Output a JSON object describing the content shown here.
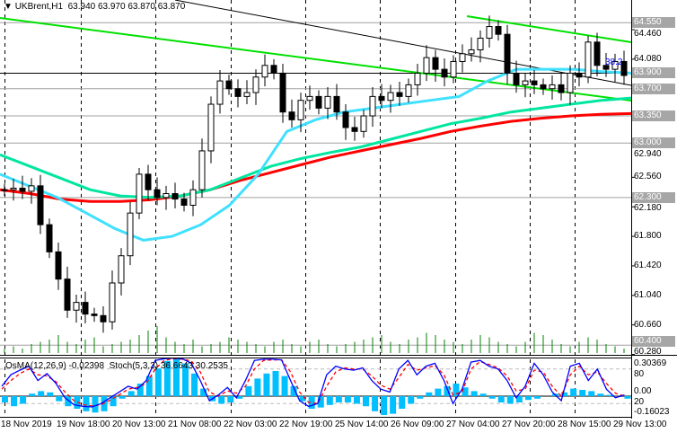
{
  "header": {
    "symbol": "UKBrent,H1",
    "ohlc": "63.940 63.970 63.870 63.870"
  },
  "indicator_header": {
    "osma": "OsMA(12,26,9) -0.02398",
    "stoch": "Stoch(5,3,3) 36.6643 30.2535"
  },
  "price_axis": [
    "64.460",
    "64.080",
    "62.940",
    "62.560",
    "62.180",
    "61.800",
    "61.420",
    "61.040",
    "60.660",
    "60.280"
  ],
  "level_labels": [
    "64.550",
    "63.900",
    "63.700",
    "63.350",
    "63.000",
    "62.300",
    "60.400"
  ],
  "fib_label": "38.2",
  "indicator_axis": [
    "0.30369",
    "80",
    "0.00",
    "20",
    "-0.16023"
  ],
  "time_axis": [
    "18 Nov 2019",
    "19 Nov 18:00",
    "20 Nov 13:00",
    "21 Nov 08:00",
    "22 Nov 03:00",
    "22 Nov 19:00",
    "25 Nov 14:00",
    "26 Nov 09:00",
    "27 Nov 04:00",
    "27 Nov 20:00",
    "28 Nov 15:00",
    "29 Nov 13:00"
  ],
  "colors": {
    "bull": "#ffffff",
    "bear": "#000000",
    "ma_fast": "#40e0ff",
    "ma_mid": "#00e6a0",
    "ma_slow": "#ff0000",
    "channel": "#00e000",
    "osma": "#00bfff",
    "stoch": "#0000ff",
    "signal": "#ff0000",
    "volume": "#008000"
  },
  "chart_data": {
    "type": "candlestick",
    "price_range": [
      60.28,
      64.75
    ],
    "closes": [
      62.4,
      62.42,
      62.38,
      62.45,
      61.95,
      61.6,
      61.25,
      60.85,
      60.95,
      60.8,
      60.78,
      60.7,
      61.2,
      61.55,
      62.1,
      62.6,
      62.4,
      62.3,
      62.35,
      62.28,
      62.2,
      62.4,
      62.9,
      63.5,
      63.8,
      63.7,
      63.6,
      63.65,
      63.85,
      64.0,
      63.9,
      63.4,
      63.3,
      63.55,
      63.6,
      63.45,
      63.6,
      63.4,
      63.2,
      63.15,
      63.35,
      63.6,
      63.55,
      63.65,
      63.6,
      63.75,
      63.9,
      64.1,
      63.95,
      63.85,
      64.05,
      64.15,
      64.2,
      64.35,
      64.5,
      64.4,
      63.9,
      63.75,
      63.8,
      63.75,
      63.7,
      63.75,
      63.65,
      63.9,
      63.85,
      64.3,
      64.0,
      63.95,
      64.05,
      63.87
    ],
    "ma_fast": [
      62.6,
      62.45,
      62.3,
      62.1,
      61.9,
      61.75,
      61.8,
      61.95,
      62.2,
      62.6,
      63.15,
      63.3,
      63.4,
      63.45,
      63.5,
      63.55,
      63.6,
      63.8,
      63.95,
      63.95,
      63.95,
      63.92,
      63.9
    ],
    "ma_mid": [
      62.85,
      62.7,
      62.55,
      62.4,
      62.32,
      62.3,
      62.32,
      62.4,
      62.55,
      62.7,
      62.8,
      62.88,
      62.95,
      63.05,
      63.15,
      63.25,
      63.32,
      63.4,
      63.45,
      63.5,
      63.55,
      63.58
    ],
    "ma_slow": [
      62.4,
      62.35,
      62.28,
      62.25,
      62.25,
      62.27,
      62.32,
      62.4,
      62.52,
      62.62,
      62.72,
      62.82,
      62.9,
      62.98,
      63.06,
      63.15,
      63.22,
      63.28,
      63.32,
      63.35,
      63.37,
      63.38
    ],
    "levels": [
      64.55,
      63.9,
      63.7,
      63.35,
      63.0,
      62.3,
      60.4
    ],
    "osma": [
      -0.05,
      -0.08,
      -0.06,
      0.02,
      0.04,
      0.03,
      -0.04,
      -0.08,
      -0.1,
      -0.12,
      -0.13,
      -0.12,
      -0.08,
      -0.02,
      0.04,
      0.1,
      0.16,
      0.22,
      0.28,
      0.3,
      0.26,
      0.18,
      0.06,
      -0.04,
      -0.06,
      -0.05,
      -0.02,
      0.08,
      0.14,
      0.18,
      0.2,
      0.16,
      0.08,
      -0.04,
      -0.1,
      -0.09,
      -0.07,
      -0.05,
      -0.05,
      -0.06,
      -0.08,
      -0.12,
      -0.15,
      -0.14,
      -0.1,
      -0.06,
      -0.02,
      0.03,
      0.06,
      0.08,
      0.1,
      0.07,
      0.04,
      0.02,
      -0.02,
      -0.05,
      -0.06,
      -0.05,
      -0.03,
      -0.02,
      0.0,
      0.02,
      0.03,
      0.06,
      0.05,
      0.04,
      0.02,
      0.01,
      0.0,
      -0.02
    ],
    "stoch_main": [
      50,
      70,
      78,
      85,
      60,
      72,
      55,
      30,
      18,
      15,
      14,
      20,
      30,
      40,
      50,
      45,
      60,
      95,
      98,
      99,
      98,
      90,
      60,
      25,
      35,
      48,
      30,
      60,
      95,
      97,
      97,
      96,
      60,
      25,
      15,
      20,
      70,
      85,
      80,
      78,
      82,
      60,
      45,
      40,
      80,
      95,
      70,
      85,
      90,
      60,
      20,
      45,
      92,
      95,
      85,
      80,
      60,
      30,
      50,
      90,
      70,
      40,
      25,
      85,
      90,
      60,
      80,
      45,
      30,
      35
    ],
    "stoch_signal": [
      45,
      60,
      72,
      80,
      70,
      68,
      58,
      40,
      25,
      18,
      16,
      18,
      26,
      35,
      45,
      48,
      55,
      80,
      95,
      98,
      97,
      94,
      75,
      40,
      33,
      42,
      38,
      50,
      80,
      95,
      96,
      96,
      75,
      40,
      22,
      20,
      50,
      75,
      82,
      80,
      80,
      68,
      52,
      45,
      65,
      88,
      78,
      82,
      86,
      70,
      35,
      40,
      80,
      93,
      88,
      82,
      68,
      42,
      45,
      78,
      75,
      50,
      33,
      70,
      85,
      70,
      75,
      55,
      38,
      33
    ],
    "volume": [
      2,
      3,
      2,
      4,
      5,
      6,
      8,
      5,
      4,
      6,
      7,
      3,
      4,
      5,
      6,
      8,
      10,
      12,
      7,
      5,
      4,
      6,
      3,
      4,
      5,
      7,
      6,
      5,
      4,
      3,
      5,
      6,
      4,
      3,
      5,
      6,
      4,
      3,
      4,
      5,
      6,
      7,
      8,
      5,
      4,
      6,
      7,
      9,
      8,
      6,
      5,
      4,
      6,
      8,
      7,
      5,
      4,
      3,
      5,
      9,
      8,
      6,
      4,
      3,
      5,
      7,
      6,
      4,
      3,
      2
    ]
  }
}
